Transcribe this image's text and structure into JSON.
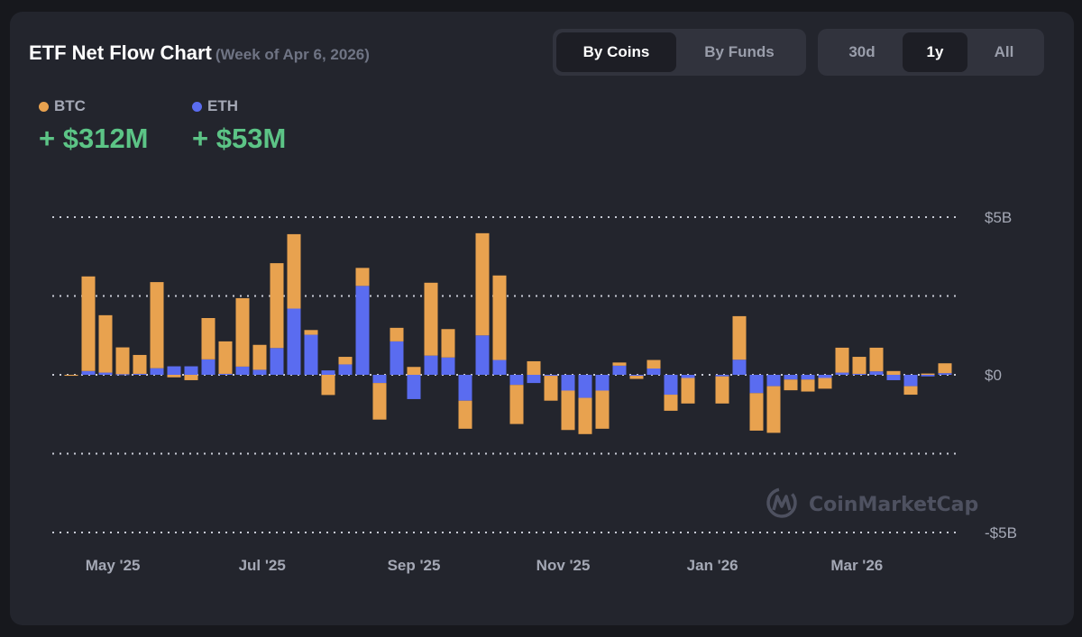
{
  "header": {
    "title": "ETF Net Flow Chart",
    "subtitle": "(Week of Apr 6, 2026)"
  },
  "view_toggle": {
    "options": [
      "By Coins",
      "By Funds"
    ],
    "selected": "By Coins"
  },
  "range_toggle": {
    "options": [
      "30d",
      "1y",
      "All"
    ],
    "selected": "1y"
  },
  "summary": [
    {
      "label": "BTC",
      "value": "+ $312M",
      "color": "#e8a24f"
    },
    {
      "label": "ETH",
      "value": "+ $53M",
      "color": "#5a6cf0"
    }
  ],
  "watermark": "CoinMarketCap",
  "colors": {
    "btc": "#e8a24f",
    "eth": "#5a6cf0",
    "positive": "#5cc486",
    "background": "#23252d"
  },
  "chart_data": {
    "type": "bar",
    "stacked": true,
    "unit": "USD billions",
    "ylim": [
      -5,
      5
    ],
    "yticks": [
      {
        "value": 5,
        "label": "$5B"
      },
      {
        "value": 0,
        "label": "$0"
      },
      {
        "value": -5,
        "label": "-$5B"
      }
    ],
    "gridlines": [
      5,
      2.5,
      0,
      -2.5,
      -5
    ],
    "grid": true,
    "xticks": [
      {
        "date": "2025-05-01",
        "label": "May '25"
      },
      {
        "date": "2025-07-01",
        "label": "Jul '25"
      },
      {
        "date": "2025-09-01",
        "label": "Sep '25"
      },
      {
        "date": "2025-11-01",
        "label": "Nov '25"
      },
      {
        "date": "2026-01-01",
        "label": "Jan '26"
      },
      {
        "date": "2026-03-01",
        "label": "Mar '26"
      }
    ],
    "x": [
      "2025-04-14",
      "2025-04-21",
      "2025-04-28",
      "2025-05-05",
      "2025-05-12",
      "2025-05-19",
      "2025-05-26",
      "2025-06-02",
      "2025-06-09",
      "2025-06-16",
      "2025-06-23",
      "2025-06-30",
      "2025-07-07",
      "2025-07-14",
      "2025-07-21",
      "2025-07-28",
      "2025-08-04",
      "2025-08-11",
      "2025-08-18",
      "2025-08-25",
      "2025-09-01",
      "2025-09-08",
      "2025-09-15",
      "2025-09-22",
      "2025-09-29",
      "2025-10-06",
      "2025-10-13",
      "2025-10-20",
      "2025-10-27",
      "2025-11-03",
      "2025-11-10",
      "2025-11-17",
      "2025-11-24",
      "2025-12-01",
      "2025-12-08",
      "2025-12-15",
      "2025-12-22",
      "2025-12-29",
      "2026-01-05",
      "2026-01-12",
      "2026-01-19",
      "2026-01-26",
      "2026-02-02",
      "2026-02-09",
      "2026-02-16",
      "2026-02-23",
      "2026-03-02",
      "2026-03-09",
      "2026-03-16",
      "2026-03-23",
      "2026-03-30",
      "2026-04-06"
    ],
    "series": [
      {
        "name": "BTC",
        "color": "#e8a24f",
        "values": [
          -0.03,
          3.0,
          1.82,
          0.85,
          0.6,
          2.73,
          -0.08,
          -0.17,
          1.31,
          1.03,
          2.17,
          0.79,
          2.69,
          2.36,
          0.15,
          -0.64,
          0.24,
          0.57,
          -1.16,
          0.43,
          0.25,
          2.31,
          0.9,
          -0.89,
          3.24,
          2.68,
          -1.24,
          0.43,
          -0.79,
          -1.25,
          -1.15,
          -1.21,
          0.1,
          -0.1,
          0.27,
          -0.51,
          -0.81,
          null,
          -0.86,
          1.38,
          -1.19,
          -1.48,
          -0.34,
          -0.38,
          -0.34,
          0.79,
          0.54,
          0.75,
          0.12,
          -0.27,
          0.04,
          0.312
        ]
      },
      {
        "name": "ETH",
        "color": "#5a6cf0",
        "values": [
          0.0,
          0.12,
          0.07,
          0.02,
          0.03,
          0.21,
          0.27,
          0.27,
          0.49,
          0.03,
          0.26,
          0.16,
          0.85,
          2.1,
          1.27,
          0.14,
          0.33,
          2.82,
          -0.26,
          1.06,
          -0.77,
          0.61,
          0.55,
          -0.82,
          1.25,
          0.47,
          -0.32,
          -0.26,
          -0.03,
          -0.5,
          -0.73,
          -0.5,
          0.29,
          -0.03,
          0.2,
          -0.63,
          -0.1,
          null,
          -0.05,
          0.48,
          -0.58,
          -0.36,
          -0.15,
          -0.15,
          -0.1,
          0.07,
          0.03,
          0.11,
          -0.17,
          -0.36,
          -0.05,
          0.053
        ]
      }
    ]
  }
}
